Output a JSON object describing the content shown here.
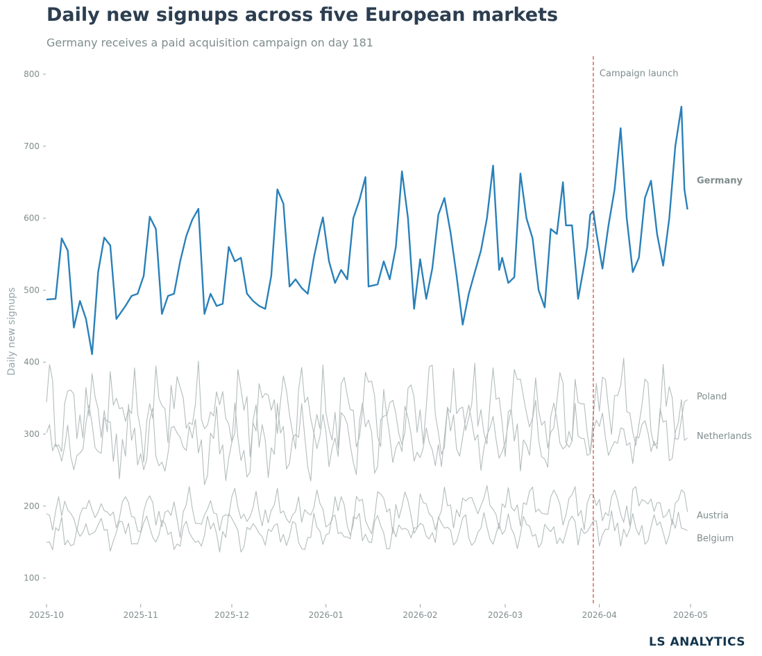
{
  "title": "Daily new signups across five European markets",
  "subtitle": "Germany receives a paid acquisition campaign on day 181",
  "brand": "LS ANALYTICS",
  "colors": {
    "highlight": "#2980b9",
    "context": "#b3bcbc",
    "event": "#c0392b",
    "title": "#2c3e50",
    "muted": "#7f8c8d"
  },
  "chart_data": {
    "type": "line",
    "title": "Daily new signups across five European markets",
    "subtitle": "Germany receives a paid acquisition campaign on day 181",
    "ylabel": "Daily new signups",
    "xlabel": "",
    "xlim": [
      "2025-10-01",
      "2026-04-30"
    ],
    "ylim": [
      65,
      825
    ],
    "x_ticks": [
      "2025-10-01",
      "2025-11-01",
      "2025-12-01",
      "2026-01-01",
      "2026-02-01",
      "2026-03-01",
      "2026-04-01",
      "2026-05-01"
    ],
    "x_tick_labels": [
      "2025-10",
      "2025-11",
      "2025-12",
      "2026-01",
      "2026-02",
      "2026-03",
      "2026-04",
      "2026-05"
    ],
    "y_ticks": [
      100,
      200,
      300,
      400,
      500,
      600,
      700,
      800
    ],
    "grid": false,
    "legend": "direct labels at line ends (right)",
    "event": {
      "date": "2026-03-30",
      "label": "Campaign launch"
    },
    "series": [
      {
        "name": "Germany",
        "highlight": true,
        "label_y": 652,
        "points": [
          [
            "2025-10-01",
            487
          ],
          [
            "2025-10-04",
            488
          ],
          [
            "2025-10-06",
            572
          ],
          [
            "2025-10-08",
            555
          ],
          [
            "2025-10-10",
            448
          ],
          [
            "2025-10-12",
            485
          ],
          [
            "2025-10-14",
            460
          ],
          [
            "2025-10-16",
            411
          ],
          [
            "2025-10-18",
            525
          ],
          [
            "2025-10-20",
            573
          ],
          [
            "2025-10-22",
            562
          ],
          [
            "2025-10-24",
            460
          ],
          [
            "2025-10-27",
            478
          ],
          [
            "2025-10-29",
            492
          ],
          [
            "2025-10-31",
            495
          ],
          [
            "2025-11-02",
            520
          ],
          [
            "2025-11-04",
            602
          ],
          [
            "2025-11-06",
            585
          ],
          [
            "2025-11-08",
            467
          ],
          [
            "2025-11-10",
            492
          ],
          [
            "2025-11-12",
            495
          ],
          [
            "2025-11-14",
            540
          ],
          [
            "2025-11-16",
            575
          ],
          [
            "2025-11-18",
            598
          ],
          [
            "2025-11-20",
            613
          ],
          [
            "2025-11-22",
            467
          ],
          [
            "2025-11-24",
            495
          ],
          [
            "2025-11-26",
            478
          ],
          [
            "2025-11-28",
            481
          ],
          [
            "2025-11-30",
            560
          ],
          [
            "2025-12-02",
            540
          ],
          [
            "2025-12-04",
            545
          ],
          [
            "2025-12-06",
            495
          ],
          [
            "2025-12-08",
            485
          ],
          [
            "2025-12-10",
            478
          ],
          [
            "2025-12-12",
            474
          ],
          [
            "2025-12-14",
            520
          ],
          [
            "2025-12-16",
            640
          ],
          [
            "2025-12-18",
            620
          ],
          [
            "2025-12-20",
            505
          ],
          [
            "2025-12-22",
            515
          ],
          [
            "2025-12-24",
            503
          ],
          [
            "2025-12-26",
            495
          ],
          [
            "2025-12-28",
            545
          ],
          [
            "2025-12-30",
            585
          ],
          [
            "2025-12-31",
            601
          ],
          [
            "2026-01-02",
            540
          ],
          [
            "2026-01-04",
            510
          ],
          [
            "2026-01-06",
            528
          ],
          [
            "2026-01-08",
            515
          ],
          [
            "2026-01-10",
            600
          ],
          [
            "2026-01-12",
            625
          ],
          [
            "2026-01-14",
            657
          ],
          [
            "2026-01-15",
            505
          ],
          [
            "2026-01-18",
            508
          ],
          [
            "2026-01-20",
            540
          ],
          [
            "2026-01-22",
            515
          ],
          [
            "2026-01-24",
            560
          ],
          [
            "2026-01-26",
            665
          ],
          [
            "2026-01-28",
            600
          ],
          [
            "2026-01-30",
            474
          ],
          [
            "2026-02-01",
            543
          ],
          [
            "2026-02-03",
            488
          ],
          [
            "2026-02-05",
            530
          ],
          [
            "2026-02-07",
            605
          ],
          [
            "2026-02-09",
            628
          ],
          [
            "2026-02-11",
            580
          ],
          [
            "2026-02-13",
            520
          ],
          [
            "2026-02-15",
            452
          ],
          [
            "2026-02-17",
            495
          ],
          [
            "2026-02-19",
            525
          ],
          [
            "2026-02-21",
            555
          ],
          [
            "2026-02-23",
            600
          ],
          [
            "2026-02-25",
            673
          ],
          [
            "2026-02-27",
            528
          ],
          [
            "2026-02-28",
            545
          ],
          [
            "2026-03-02",
            510
          ],
          [
            "2026-03-04",
            518
          ],
          [
            "2026-03-06",
            662
          ],
          [
            "2026-03-08",
            600
          ],
          [
            "2026-03-10",
            572
          ],
          [
            "2026-03-12",
            500
          ],
          [
            "2026-03-14",
            476
          ],
          [
            "2026-03-16",
            585
          ],
          [
            "2026-03-18",
            578
          ],
          [
            "2026-03-20",
            650
          ],
          [
            "2026-03-21",
            590
          ],
          [
            "2026-03-23",
            590
          ],
          [
            "2026-03-25",
            488
          ],
          [
            "2026-03-27",
            535
          ],
          [
            "2026-03-28",
            560
          ]
        ]
      },
      {
        "name": "Poland",
        "highlight": false,
        "label_y": 352,
        "values": []
      },
      {
        "name": "Netherlands",
        "highlight": false,
        "label_y": 297,
        "values": []
      },
      {
        "name": "Austria",
        "highlight": false,
        "label_y": 187,
        "values": []
      },
      {
        "name": "Belgium",
        "highlight": false,
        "label_y": 155,
        "values": []
      }
    ]
  }
}
